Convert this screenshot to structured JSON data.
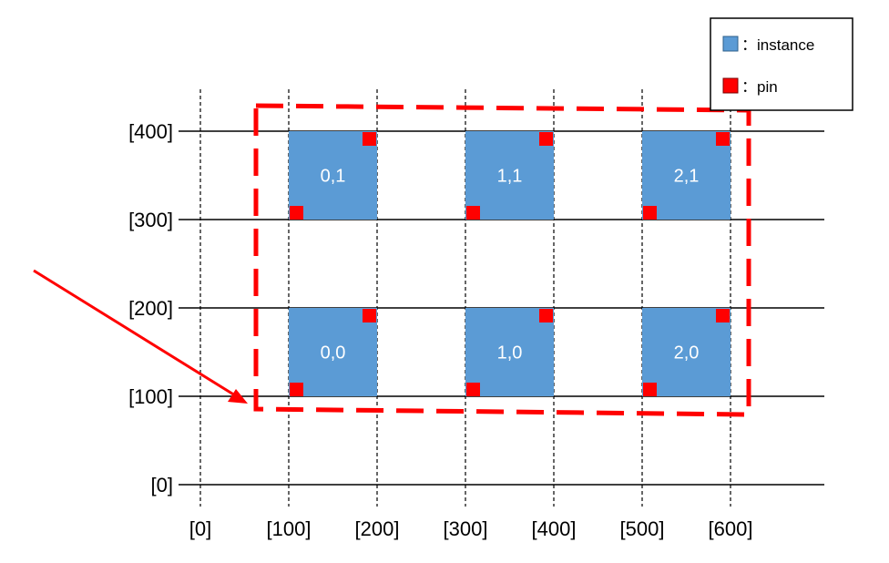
{
  "axes": {
    "x_ticks": [
      "[0]",
      "[100]",
      "[200]",
      "[300]",
      "[400]",
      "[500]",
      "[600]"
    ],
    "y_ticks": [
      "[0]",
      "[100]",
      "[200]",
      "[300]",
      "[400]"
    ]
  },
  "instances": [
    {
      "label": "0,0",
      "col": 0,
      "row": 0
    },
    {
      "label": "1,0",
      "col": 1,
      "row": 0
    },
    {
      "label": "2,0",
      "col": 2,
      "row": 0
    },
    {
      "label": "0,1",
      "col": 0,
      "row": 1
    },
    {
      "label": "1,1",
      "col": 1,
      "row": 1
    },
    {
      "label": "2,1",
      "col": 2,
      "row": 1
    }
  ],
  "legend": {
    "instance_label": "：instance",
    "pin_label": "：pin"
  },
  "colors": {
    "instance": "#5b9bd5",
    "pin": "#ff0000",
    "boundary": "#ff0000",
    "arrow": "#ff0000"
  }
}
